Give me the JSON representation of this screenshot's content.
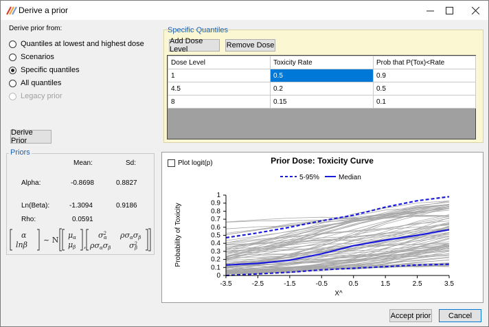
{
  "window": {
    "title": "Derive a prior"
  },
  "derive_from": {
    "label": "Derive prior from:",
    "options": [
      {
        "label": "Quantiles at lowest and highest dose",
        "selected": false,
        "disabled": false
      },
      {
        "label": "Scenarios",
        "selected": false,
        "disabled": false
      },
      {
        "label": "Specific quantiles",
        "selected": true,
        "disabled": false
      },
      {
        "label": "All quantiles",
        "selected": false,
        "disabled": false
      },
      {
        "label": "Legacy prior",
        "selected": false,
        "disabled": true
      }
    ],
    "derive_button": "Derive Prior"
  },
  "specific_quantiles": {
    "title": "Specific Quantiles",
    "add_button": "Add Dose Level",
    "remove_button": "Remove Dose",
    "columns": [
      "Dose Level",
      "Toxicity Rate",
      "Prob that P(Tox)<Rate"
    ],
    "rows": [
      [
        "1",
        "0.5",
        "0.9"
      ],
      [
        "4.5",
        "0.2",
        "0.5"
      ],
      [
        "8",
        "0.15",
        "0.1"
      ]
    ]
  },
  "priors": {
    "title": "Priors",
    "mean_header": "Mean:",
    "sd_header": "Sd:",
    "alpha_label": "Alpha:",
    "alpha_mean": "-0.8698",
    "alpha_sd": "0.8827",
    "beta_label": "Ln(Beta):",
    "beta_mean": "-1.3094",
    "beta_sd": "0.9186",
    "rho_label": "Rho:",
    "rho_value": "0.0591"
  },
  "plot_logit": {
    "label": "Plot logit(p)",
    "checked": false
  },
  "chart_data": {
    "type": "line",
    "title": "Prior Dose: Toxicity Curve",
    "xlabel": "X^",
    "ylabel": "Probability of Toxicity",
    "xlim": [
      -3.5,
      3.5
    ],
    "ylim": [
      0,
      1
    ],
    "xticks": [
      "-3.5",
      "-2.5",
      "-1.5",
      "-0.5",
      "0.5",
      "1.5",
      "2.5",
      "3.5"
    ],
    "yticks": [
      "0",
      "0.1",
      "0.2",
      "0.3",
      "0.4",
      "0.5",
      "0.6",
      "0.7",
      "0.8",
      "0.9",
      "1"
    ],
    "legend": [
      "5-95%",
      "Median"
    ],
    "legend_position": "top",
    "x": [
      -3.5,
      -2.5,
      -1.5,
      -0.5,
      0.5,
      1.5,
      2.5,
      3.5
    ],
    "series": [
      {
        "name": "5-95%",
        "style": "dashed",
        "color": "#1a1adb",
        "values": [
          0.47,
          0.53,
          0.6,
          0.68,
          0.75,
          0.85,
          0.93,
          0.98
        ]
      },
      {
        "name": "Median",
        "style": "solid",
        "color": "#1a1adb",
        "values": [
          0.13,
          0.15,
          0.19,
          0.27,
          0.37,
          0.44,
          0.5,
          0.57
        ]
      },
      {
        "name": "5-95%",
        "style": "dashed",
        "color": "#1a1adb",
        "values": [
          0.0,
          0.02,
          0.04,
          0.07,
          0.09,
          0.11,
          0.13,
          0.14
        ]
      }
    ],
    "samples_color": "#a8a8a8"
  },
  "footer": {
    "accept_button": "Accept prior",
    "cancel_button": "Cancel"
  }
}
